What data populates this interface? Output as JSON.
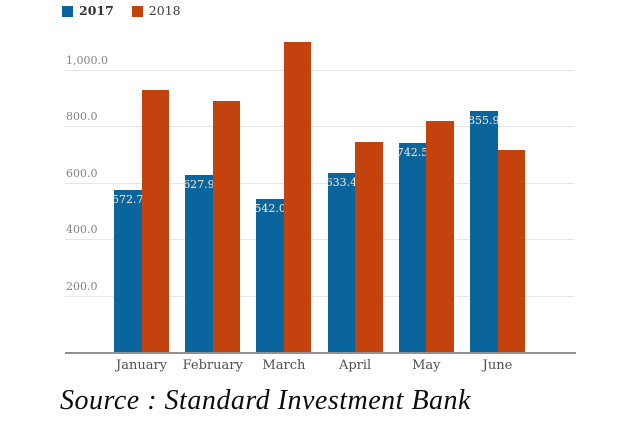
{
  "source_note": "Source : Standard Investment Bank",
  "colors": {
    "series_2017": "#0b659d",
    "series_2018": "#c3420e",
    "gridline": "#e6e6e6",
    "axis_line": "#919191",
    "value_label_text": "#f3ebd7",
    "tick_text": "#848484",
    "background": "#ffffff"
  },
  "chart_data": {
    "type": "bar",
    "title": "",
    "xlabel": "",
    "ylabel": "",
    "categories": [
      "January",
      "February",
      "March",
      "April",
      "May",
      "June"
    ],
    "series": [
      {
        "name": "2017",
        "color": "#0b659d",
        "values": [
          572.7,
          627.9,
          542.0,
          633.4,
          742.5,
          855.9
        ],
        "value_labels": [
          "572.7",
          "627.9",
          "542.0",
          "633.4",
          "742.5",
          "855.9"
        ],
        "show_value_labels": true,
        "legend_bold": true
      },
      {
        "name": "2018",
        "color": "#c3420e",
        "values": [
          930,
          890,
          1100,
          745,
          820,
          715
        ],
        "value_labels": [],
        "show_value_labels": false,
        "legend_bold": false
      }
    ],
    "yticks": [
      200,
      400,
      600,
      800,
      1000
    ],
    "ytick_labels": [
      "200.0",
      "400.0",
      "600.0",
      "800.0",
      "1,000.0"
    ],
    "ylim": [
      0,
      1106
    ],
    "grid": true,
    "legend_position": "top-left"
  }
}
